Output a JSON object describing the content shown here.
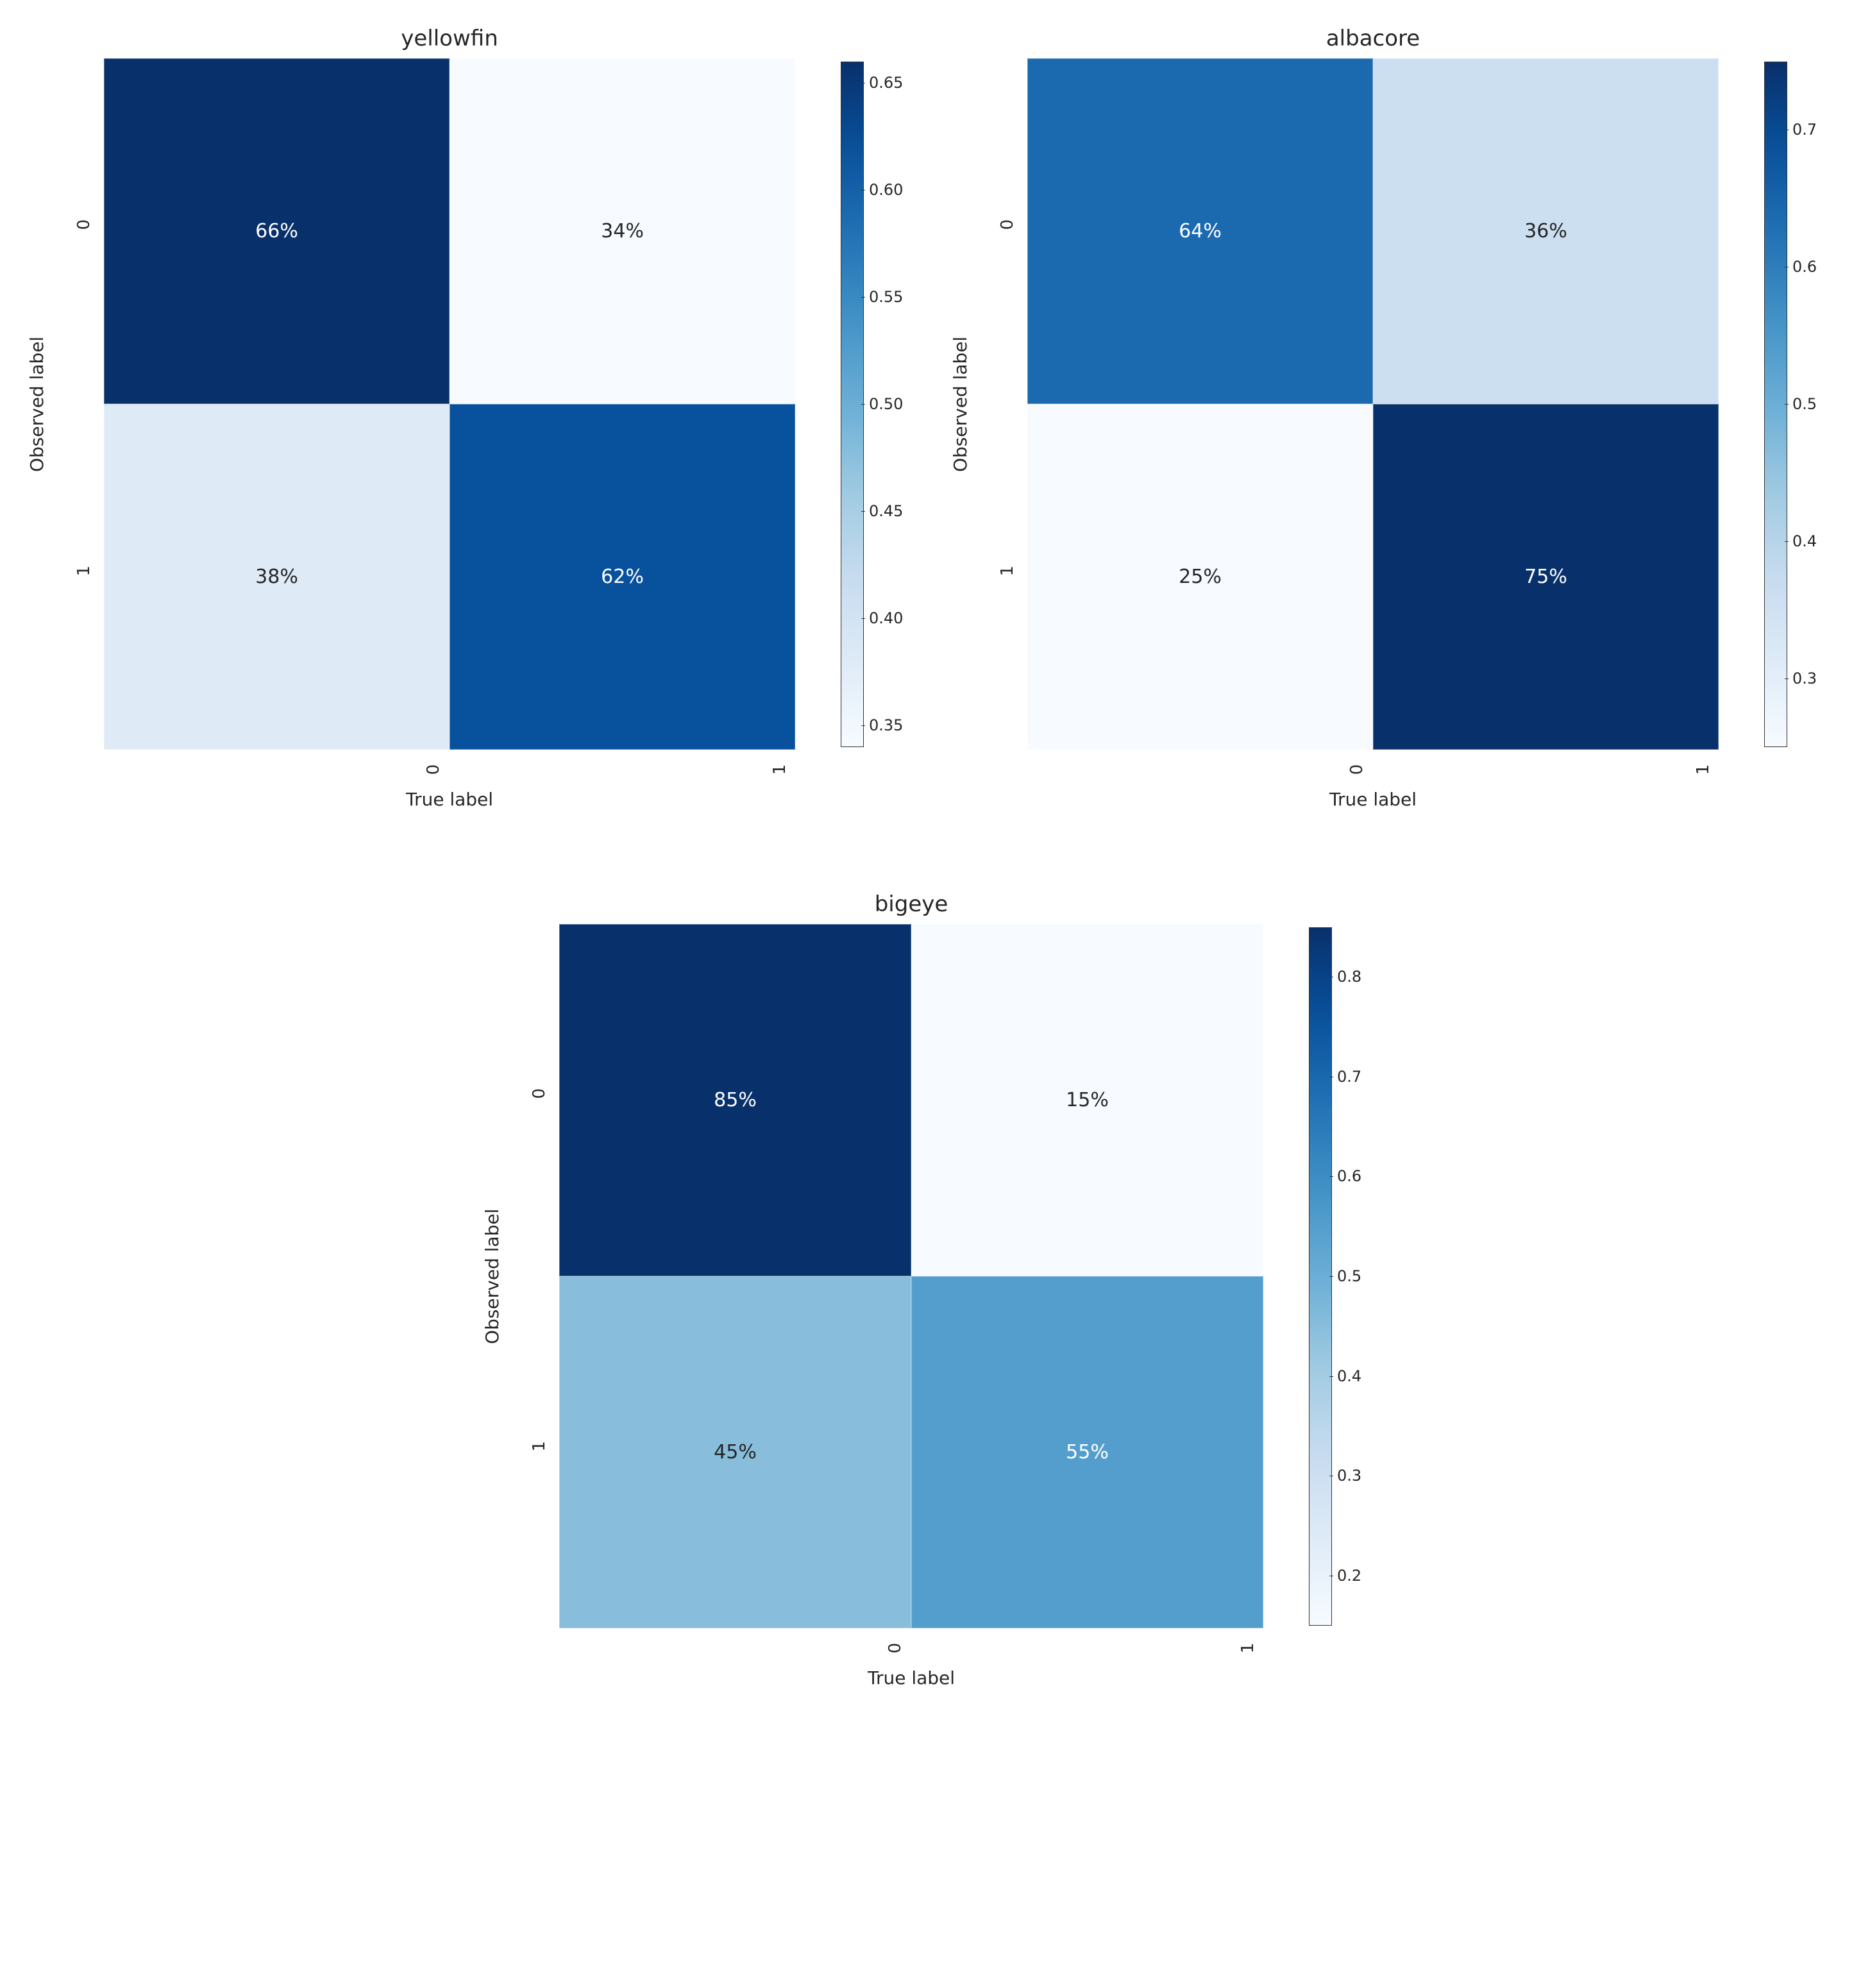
{
  "figure": {
    "background_color": "#ffffff",
    "font_family": "DejaVu Sans",
    "layout": "2x2 grid, bottom subplot centered spanning both columns",
    "colormap_name": "Blues",
    "colormap_stops": [
      {
        "t": 0.0,
        "color": "#f7fbff"
      },
      {
        "t": 0.125,
        "color": "#deebf7"
      },
      {
        "t": 0.25,
        "color": "#c6dbef"
      },
      {
        "t": 0.375,
        "color": "#9ecae1"
      },
      {
        "t": 0.5,
        "color": "#6baed6"
      },
      {
        "t": 0.625,
        "color": "#4292c6"
      },
      {
        "t": 0.75,
        "color": "#2171b5"
      },
      {
        "t": 0.875,
        "color": "#08519c"
      },
      {
        "t": 1.0,
        "color": "#08306b"
      }
    ],
    "text_light": "#ffffff",
    "text_dark": "#262626",
    "text_threshold": 0.5
  },
  "subplots": [
    {
      "key": "yellowfin",
      "title": "yellowfin",
      "type": "heatmap",
      "xlabel": "True label",
      "ylabel": "Observed label",
      "xticks": [
        "0",
        "1"
      ],
      "yticks": [
        "0",
        "1"
      ],
      "title_fontsize": 34,
      "label_fontsize": 28,
      "tick_fontsize": 26,
      "tick_rotation": -90,
      "cells": [
        {
          "r": 0,
          "c": 0,
          "value": 0.66,
          "label": "66%"
        },
        {
          "r": 0,
          "c": 1,
          "value": 0.34,
          "label": "34%"
        },
        {
          "r": 1,
          "c": 0,
          "value": 0.38,
          "label": "38%"
        },
        {
          "r": 1,
          "c": 1,
          "value": 0.62,
          "label": "62%"
        }
      ],
      "vmin": 0.34,
      "vmax": 0.66,
      "colorbar_ticks": [
        0.35,
        0.4,
        0.45,
        0.5,
        0.55,
        0.6,
        0.65
      ],
      "colorbar_tick_labels": [
        "0.35",
        "0.40",
        "0.45",
        "0.50",
        "0.55",
        "0.60",
        "0.65"
      ]
    },
    {
      "key": "albacore",
      "title": "albacore",
      "type": "heatmap",
      "xlabel": "True label",
      "ylabel": "Observed label",
      "xticks": [
        "0",
        "1"
      ],
      "yticks": [
        "0",
        "1"
      ],
      "title_fontsize": 34,
      "label_fontsize": 28,
      "tick_fontsize": 26,
      "tick_rotation": -90,
      "cells": [
        {
          "r": 0,
          "c": 0,
          "value": 0.64,
          "label": "64%"
        },
        {
          "r": 0,
          "c": 1,
          "value": 0.36,
          "label": "36%"
        },
        {
          "r": 1,
          "c": 0,
          "value": 0.25,
          "label": "25%"
        },
        {
          "r": 1,
          "c": 1,
          "value": 0.75,
          "label": "75%"
        }
      ],
      "vmin": 0.25,
      "vmax": 0.75,
      "colorbar_ticks": [
        0.3,
        0.4,
        0.5,
        0.6,
        0.7
      ],
      "colorbar_tick_labels": [
        "0.3",
        "0.4",
        "0.5",
        "0.6",
        "0.7"
      ]
    },
    {
      "key": "bigeye",
      "title": "bigeye",
      "type": "heatmap",
      "xlabel": "True label",
      "ylabel": "Observed label",
      "xticks": [
        "0",
        "1"
      ],
      "yticks": [
        "0",
        "1"
      ],
      "title_fontsize": 34,
      "label_fontsize": 28,
      "tick_fontsize": 26,
      "tick_rotation": -90,
      "cells": [
        {
          "r": 0,
          "c": 0,
          "value": 0.85,
          "label": "85%"
        },
        {
          "r": 0,
          "c": 1,
          "value": 0.15,
          "label": "15%"
        },
        {
          "r": 1,
          "c": 0,
          "value": 0.45,
          "label": "45%"
        },
        {
          "r": 1,
          "c": 1,
          "value": 0.55,
          "label": "55%"
        }
      ],
      "vmin": 0.15,
      "vmax": 0.85,
      "colorbar_ticks": [
        0.2,
        0.3,
        0.4,
        0.5,
        0.6,
        0.7,
        0.8
      ],
      "colorbar_tick_labels": [
        "0.2",
        "0.3",
        "0.4",
        "0.5",
        "0.6",
        "0.7",
        "0.8"
      ]
    }
  ]
}
